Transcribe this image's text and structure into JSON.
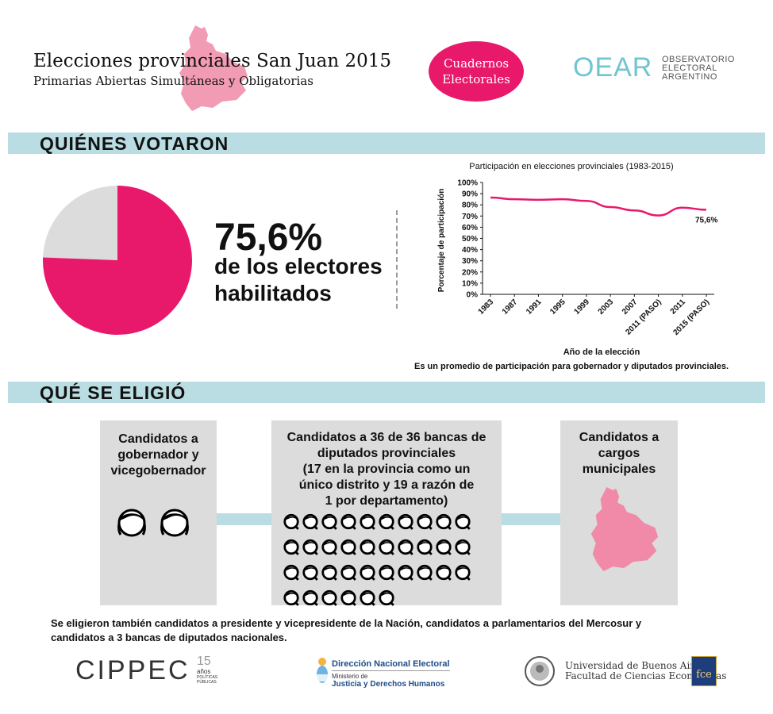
{
  "header": {
    "title": "Elecciones provinciales San Juan 2015",
    "subtitle": "Primarias Abiertas Simultáneas y Obligatorias",
    "badge_line1": "Cuadernos",
    "badge_line2": "Electorales",
    "oear_mark": "OEAR",
    "oear_line1": "OBSERVATORIO",
    "oear_line2": "ELECTORAL",
    "oear_line3": "ARGENTINO"
  },
  "sections": {
    "who_voted": "QUIÉNES VOTARON",
    "what_elected": "QUÉ SE ELIGIÓ"
  },
  "turnout": {
    "value_text": "75,6%",
    "line1": "de los electores",
    "line2": "habilitados",
    "pie_fraction": 0.756
  },
  "chart_data": {
    "type": "line",
    "title": "Participación en elecciones provinciales (1983-2015)",
    "xlabel": "Año de la elección",
    "ylabel": "Porcentaje de participación",
    "categories": [
      "1983",
      "1987",
      "1991",
      "1995",
      "1999",
      "2003",
      "2007",
      "2011 (PASO)",
      "2011",
      "2015 (PASO)"
    ],
    "y_ticks": [
      "0%",
      "10%",
      "20%",
      "30%",
      "40%",
      "50%",
      "60%",
      "70%",
      "80%",
      "90%",
      "100%"
    ],
    "ylim": [
      0,
      100
    ],
    "series": [
      {
        "name": "Participación",
        "values": [
          86.5,
          85,
          84.5,
          85,
          83.5,
          78,
          75,
          70.5,
          77.5,
          75.6
        ]
      }
    ],
    "end_label": "75,6%",
    "note": "Es un promedio de participación para gobernador y diputados provinciales."
  },
  "boxes": {
    "governor": {
      "line1": "Candidatos a",
      "line2": "gobernador y",
      "line3": "vicegobernador",
      "count": 2
    },
    "deputies": {
      "line1": "Candidatos a 36 de 36 bancas de",
      "line2": "diputados provinciales",
      "line3": "(17 en la provincia como un",
      "line4": "único distrito y 19 a razón de",
      "line5": "1 por departamento)",
      "count": 36
    },
    "municipal": {
      "line1": "Candidatos a",
      "line2": "cargos",
      "line3": "municipales"
    }
  },
  "footnote": {
    "line1": "Se eligieron también candidatos a presidente y vicepresidente de la Nación, candidatos a parlamentarios del Mercosur y",
    "line2": "candidatos a 3 bancas de diputados nacionales."
  },
  "logos": {
    "cippec": "CIPPEC",
    "cippec_years": "15",
    "cippec_anos": "años",
    "cippec_pp1": "POLÍTICAS",
    "cippec_pp2": "PÚBLICAS",
    "dne_title": "Dirección Nacional Electoral",
    "dne_min": "Ministerio de",
    "dne_just": "Justicia y Derechos Humanos",
    "uba_line1": "Universidad de Buenos Aires",
    "uba_line2": "Facultad de Ciencias Económicas",
    "fce": "fce"
  },
  "colors": {
    "accent": "#e8196b",
    "band": "#b9dde2",
    "pie_rest": "#dcdcdc",
    "province": "#f08aa8"
  }
}
